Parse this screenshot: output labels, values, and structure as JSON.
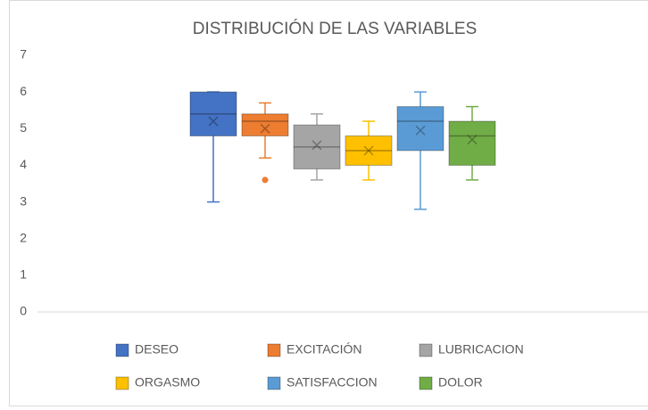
{
  "chart_data": {
    "type": "box",
    "title": "DISTRIBUCIÓN DE LAS VARIABLES",
    "ylim": [
      0,
      7
    ],
    "yticks": [
      0,
      1,
      2,
      3,
      4,
      5,
      6,
      7
    ],
    "grid": false,
    "legend": "bottom",
    "series": [
      {
        "name": "DESEO",
        "color": "#4472c4",
        "min": 3,
        "q1": 4.8,
        "median": 5.4,
        "q3": 6,
        "max": 6,
        "mean": 5.2
      },
      {
        "name": "EXCITACIÓN",
        "color": "#ed7d31",
        "min": 4.2,
        "q1": 4.8,
        "median": 5.2,
        "q3": 5.4,
        "max": 5.7,
        "mean": 5.0,
        "outliers": [
          3.6
        ]
      },
      {
        "name": "LUBRICACION",
        "color": "#a5a5a5",
        "min": 3.6,
        "q1": 3.9,
        "median": 4.5,
        "q3": 5.1,
        "max": 5.4,
        "mean": 4.55
      },
      {
        "name": "ORGASMO",
        "color": "#ffc000",
        "min": 3.6,
        "q1": 4.0,
        "median": 4.4,
        "q3": 4.8,
        "max": 5.2,
        "mean": 4.4
      },
      {
        "name": "SATISFACCION",
        "color": "#5b9bd5",
        "min": 2.8,
        "q1": 4.4,
        "median": 5.2,
        "q3": 5.6,
        "max": 6,
        "mean": 4.95
      },
      {
        "name": "DOLOR",
        "color": "#70ad47",
        "min": 3.6,
        "q1": 4.0,
        "median": 4.8,
        "q3": 5.2,
        "max": 5.6,
        "mean": 4.7
      }
    ]
  }
}
